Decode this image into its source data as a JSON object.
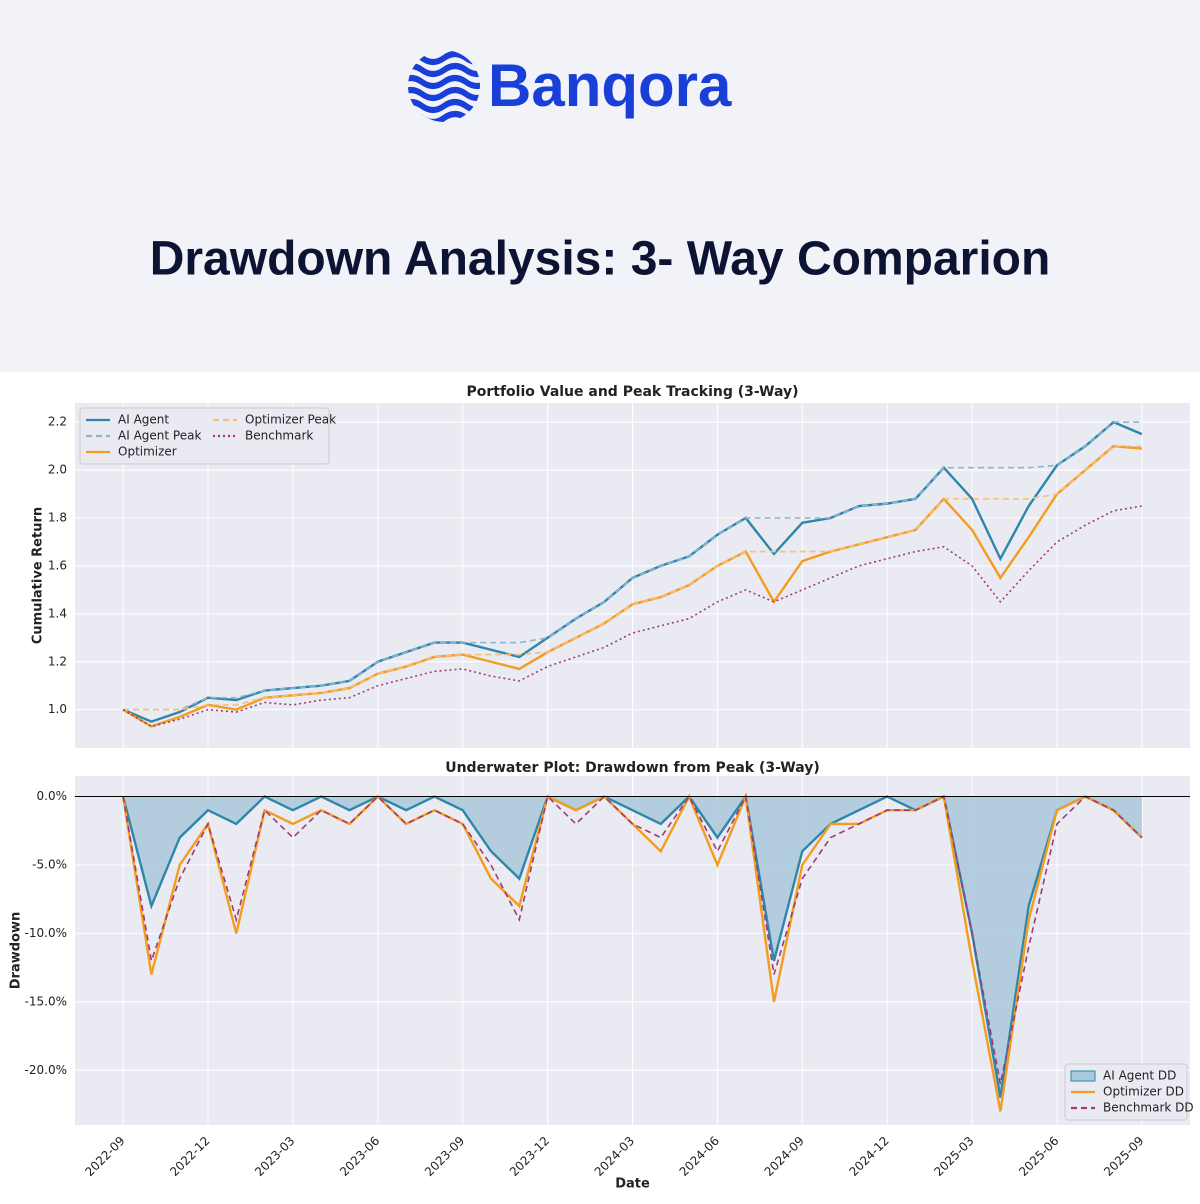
{
  "header": {
    "brand": "Banqora",
    "title": "Drawdown Analysis: 3- Way Comparion"
  },
  "chart_data": [
    {
      "type": "line",
      "title": "Portfolio Value and Peak Tracking (3-Way)",
      "ylabel": "Cumulative Return",
      "x": [
        "2022-09",
        "2022-10",
        "2022-11",
        "2022-12",
        "2023-01",
        "2023-02",
        "2023-03",
        "2023-04",
        "2023-05",
        "2023-06",
        "2023-07",
        "2023-08",
        "2023-09",
        "2023-10",
        "2023-11",
        "2023-12",
        "2024-01",
        "2024-02",
        "2024-03",
        "2024-04",
        "2024-05",
        "2024-06",
        "2024-07",
        "2024-08",
        "2024-09",
        "2024-10",
        "2024-11",
        "2024-12",
        "2025-01",
        "2025-02",
        "2025-03",
        "2025-04",
        "2025-05",
        "2025-06",
        "2025-07",
        "2025-08",
        "2025-09"
      ],
      "ylim": [
        0.84,
        2.28
      ],
      "yticks": [
        {
          "value": 1,
          "label": "1.0"
        },
        1.2,
        1.4,
        1.6,
        1.8,
        {
          "value": 2,
          "label": "2.0"
        },
        2.2
      ],
      "grid": true,
      "legend": "upper left",
      "series": [
        {
          "name": "AI Agent",
          "color": "#2e86ab",
          "dash": "solid",
          "values": [
            1.0,
            0.95,
            0.99,
            1.05,
            1.04,
            1.08,
            1.09,
            1.1,
            1.12,
            1.2,
            1.24,
            1.28,
            1.28,
            1.25,
            1.22,
            1.3,
            1.38,
            1.45,
            1.55,
            1.6,
            1.64,
            1.73,
            1.8,
            1.65,
            1.78,
            1.8,
            1.85,
            1.86,
            1.88,
            2.01,
            1.88,
            1.63,
            1.85,
            2.02,
            2.1,
            2.2,
            2.15
          ]
        },
        {
          "name": "AI Agent Peak",
          "color": "#8bb7cf",
          "dash": "dashed",
          "values": [
            1.0,
            1.0,
            1.0,
            1.05,
            1.05,
            1.08,
            1.09,
            1.1,
            1.12,
            1.2,
            1.24,
            1.28,
            1.28,
            1.28,
            1.28,
            1.3,
            1.38,
            1.45,
            1.55,
            1.6,
            1.64,
            1.73,
            1.8,
            1.8,
            1.8,
            1.8,
            1.85,
            1.86,
            1.88,
            2.01,
            2.01,
            2.01,
            2.01,
            2.02,
            2.1,
            2.2,
            2.2
          ]
        },
        {
          "name": "Optimizer",
          "color": "#f39c1f",
          "dash": "solid",
          "values": [
            1.0,
            0.93,
            0.97,
            1.02,
            1.0,
            1.05,
            1.06,
            1.07,
            1.09,
            1.15,
            1.18,
            1.22,
            1.23,
            1.2,
            1.17,
            1.24,
            1.3,
            1.36,
            1.44,
            1.47,
            1.52,
            1.6,
            1.66,
            1.45,
            1.62,
            1.66,
            1.69,
            1.72,
            1.75,
            1.88,
            1.75,
            1.55,
            1.72,
            1.9,
            2.0,
            2.1,
            2.09
          ]
        },
        {
          "name": "Optimizer Peak",
          "color": "#f5c07a",
          "dash": "dashed",
          "values": [
            1.0,
            1.0,
            1.0,
            1.02,
            1.02,
            1.05,
            1.06,
            1.07,
            1.09,
            1.15,
            1.18,
            1.22,
            1.23,
            1.23,
            1.23,
            1.24,
            1.3,
            1.36,
            1.44,
            1.47,
            1.52,
            1.6,
            1.66,
            1.66,
            1.66,
            1.66,
            1.69,
            1.72,
            1.75,
            1.88,
            1.88,
            1.88,
            1.88,
            1.9,
            2.0,
            2.1,
            2.1
          ]
        },
        {
          "name": "Benchmark",
          "color": "#a23b72",
          "dash": "dotted",
          "values": [
            1.0,
            0.93,
            0.96,
            1.0,
            0.99,
            1.03,
            1.02,
            1.04,
            1.05,
            1.1,
            1.13,
            1.16,
            1.17,
            1.14,
            1.12,
            1.18,
            1.22,
            1.26,
            1.32,
            1.35,
            1.38,
            1.45,
            1.5,
            1.45,
            1.5,
            1.55,
            1.6,
            1.63,
            1.66,
            1.68,
            1.6,
            1.45,
            1.58,
            1.7,
            1.77,
            1.83,
            1.85
          ]
        }
      ]
    },
    {
      "type": "line",
      "title": "Underwater Plot: Drawdown from Peak (3-Way)",
      "ylabel": "Drawdown",
      "xlabel": "Date",
      "x": [
        "2022-09",
        "2022-10",
        "2022-11",
        "2022-12",
        "2023-01",
        "2023-02",
        "2023-03",
        "2023-04",
        "2023-05",
        "2023-06",
        "2023-07",
        "2023-08",
        "2023-09",
        "2023-10",
        "2023-11",
        "2023-12",
        "2024-01",
        "2024-02",
        "2024-03",
        "2024-04",
        "2024-05",
        "2024-06",
        "2024-07",
        "2024-08",
        "2024-09",
        "2024-10",
        "2024-11",
        "2024-12",
        "2025-01",
        "2025-02",
        "2025-03",
        "2025-04",
        "2025-05",
        "2025-06",
        "2025-07",
        "2025-08",
        "2025-09"
      ],
      "xticks": [
        "2022-09",
        "2022-12",
        "2023-03",
        "2023-06",
        "2023-09",
        "2023-12",
        "2024-03",
        "2024-06",
        "2024-09",
        "2024-12",
        "2025-03",
        "2025-06",
        "2025-09"
      ],
      "ylim": [
        -24,
        1.5
      ],
      "yticks": [
        {
          "value": 0,
          "label": "0.0%"
        },
        {
          "value": -5,
          "label": "-5.0%"
        },
        {
          "value": -10,
          "label": "-10.0%"
        },
        {
          "value": -15,
          "label": "-15.0%"
        },
        {
          "value": -20,
          "label": "-20.0%"
        }
      ],
      "grid": true,
      "legend": "lower right",
      "series": [
        {
          "name": "AI Agent DD",
          "color": "#2e86ab",
          "dash": "solid",
          "fill": "#a9c8dc",
          "values": [
            0,
            -8,
            -3,
            -1,
            -2,
            0,
            -1,
            0,
            -1,
            0,
            -1,
            0,
            -1,
            -4,
            -6,
            0,
            -1,
            0,
            -1,
            -2,
            0,
            -3,
            0,
            -12,
            -4,
            -2,
            -1,
            0,
            -1,
            0,
            -10,
            -22,
            -8,
            -1,
            0,
            -1,
            -3
          ]
        },
        {
          "name": "Optimizer DD",
          "color": "#f39c1f",
          "dash": "solid",
          "values": [
            0,
            -13,
            -5,
            -2,
            -10,
            -1,
            -2,
            -1,
            -2,
            0,
            -2,
            -1,
            -2,
            -6,
            -8,
            0,
            -1,
            0,
            -2,
            -4,
            0,
            -5,
            0,
            -15,
            -5,
            -2,
            -2,
            -1,
            -1,
            0,
            -12,
            -23,
            -9,
            -1,
            0,
            -1,
            -3
          ]
        },
        {
          "name": "Benchmark DD",
          "color": "#a23b72",
          "dash": "dashed",
          "values": [
            0,
            -12,
            -6,
            -2,
            -9,
            -1,
            -3,
            -1,
            -2,
            0,
            -2,
            -1,
            -2,
            -5,
            -9,
            0,
            -2,
            0,
            -2,
            -3,
            0,
            -4,
            0,
            -13,
            -6,
            -3,
            -2,
            -1,
            -1,
            0,
            -10,
            -21,
            -11,
            -2,
            0,
            -1,
            -3
          ]
        }
      ]
    }
  ]
}
